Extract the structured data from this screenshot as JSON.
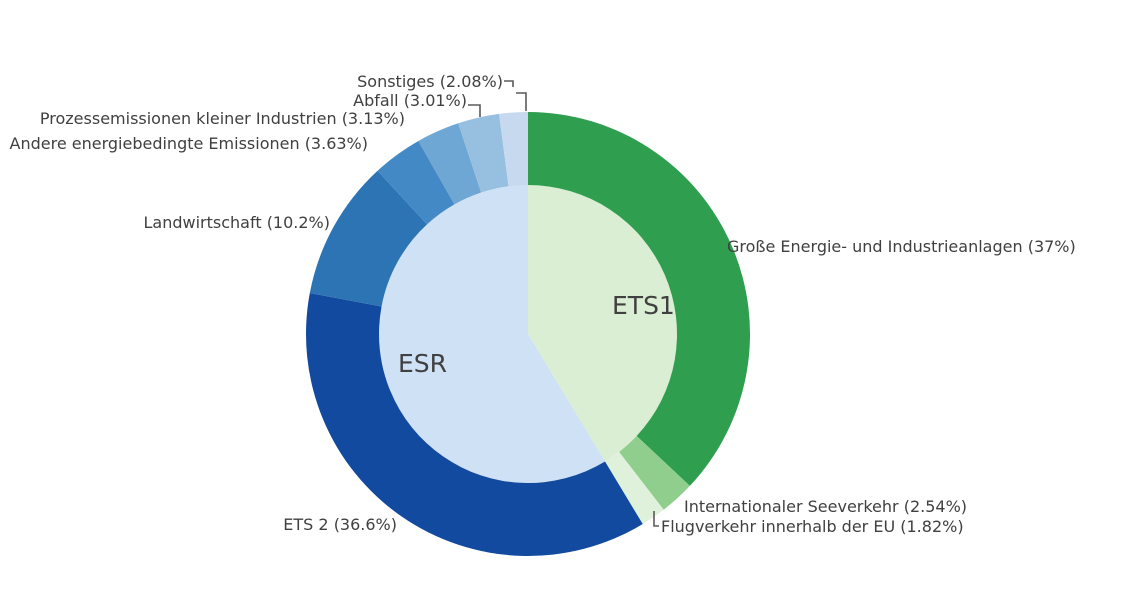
{
  "chart_data": {
    "type": "pie",
    "subtype": "sunburst-donut",
    "units": "percent-of-total-emissions",
    "title": "",
    "legend": "none",
    "background": "#ffffff",
    "text_color": "#404040",
    "leader_color": "#5a5a5a",
    "start_angle_deg": 0,
    "direction": "clockwise",
    "inner": [
      {
        "id": "ETS1",
        "label": "ETS1",
        "value": 41.36,
        "color": "#daeed4"
      },
      {
        "id": "ESR",
        "label": "ESR",
        "value": 58.65,
        "color": "#cfe1f4"
      }
    ],
    "slices": [
      {
        "name": "grosse-energie",
        "label": "Große Energie- und Industrieanlagen",
        "pct": 37,
        "display_label": "Große Energie- und Industrieanlagen (37%)",
        "color": "#2f9e4f",
        "parent": "ETS1"
      },
      {
        "name": "seeverkehr",
        "label": "Internationaler Seeverkehr",
        "pct": 2.54,
        "display_label": "Internationaler Seeverkehr (2.54%)",
        "color": "#90ce8e",
        "parent": "ETS1"
      },
      {
        "name": "flugverkehr",
        "label": "Flugverkehr innerhalb der EU",
        "pct": 1.82,
        "display_label": "Flugverkehr innerhalb der EU (1.82%)",
        "color": "#e0f1db",
        "parent": "ETS1"
      },
      {
        "name": "ets2",
        "label": "ETS 2",
        "pct": 36.6,
        "display_label": "ETS 2 (36.6%)",
        "color": "#114a9e",
        "parent": "ESR"
      },
      {
        "name": "landwirtschaft",
        "label": "Landwirtschaft",
        "pct": 10.2,
        "display_label": "Landwirtschaft (10.2%)",
        "color": "#2d74b5",
        "parent": "ESR"
      },
      {
        "name": "andere-emissionen",
        "label": "Andere energiebedingte Emissionen",
        "pct": 3.63,
        "display_label": "Andere energiebedingte Emissionen (3.63%)",
        "color": "#4389c5",
        "parent": "ESR"
      },
      {
        "name": "prozessemissionen",
        "label": "Prozessemissionen kleiner Industrien",
        "pct": 3.13,
        "display_label": "Prozessemissionen kleiner Industrien (3.13%)",
        "color": "#6ea6d4",
        "parent": "ESR"
      },
      {
        "name": "abfall",
        "label": "Abfall",
        "pct": 3.01,
        "display_label": "Abfall (3.01%)",
        "color": "#97c0e0",
        "parent": "ESR"
      },
      {
        "name": "sonstiges",
        "label": "Sonstiges",
        "pct": 2.08,
        "display_label": "Sonstiges (2.08%)",
        "color": "#c6d9ee",
        "parent": "ESR"
      }
    ]
  }
}
